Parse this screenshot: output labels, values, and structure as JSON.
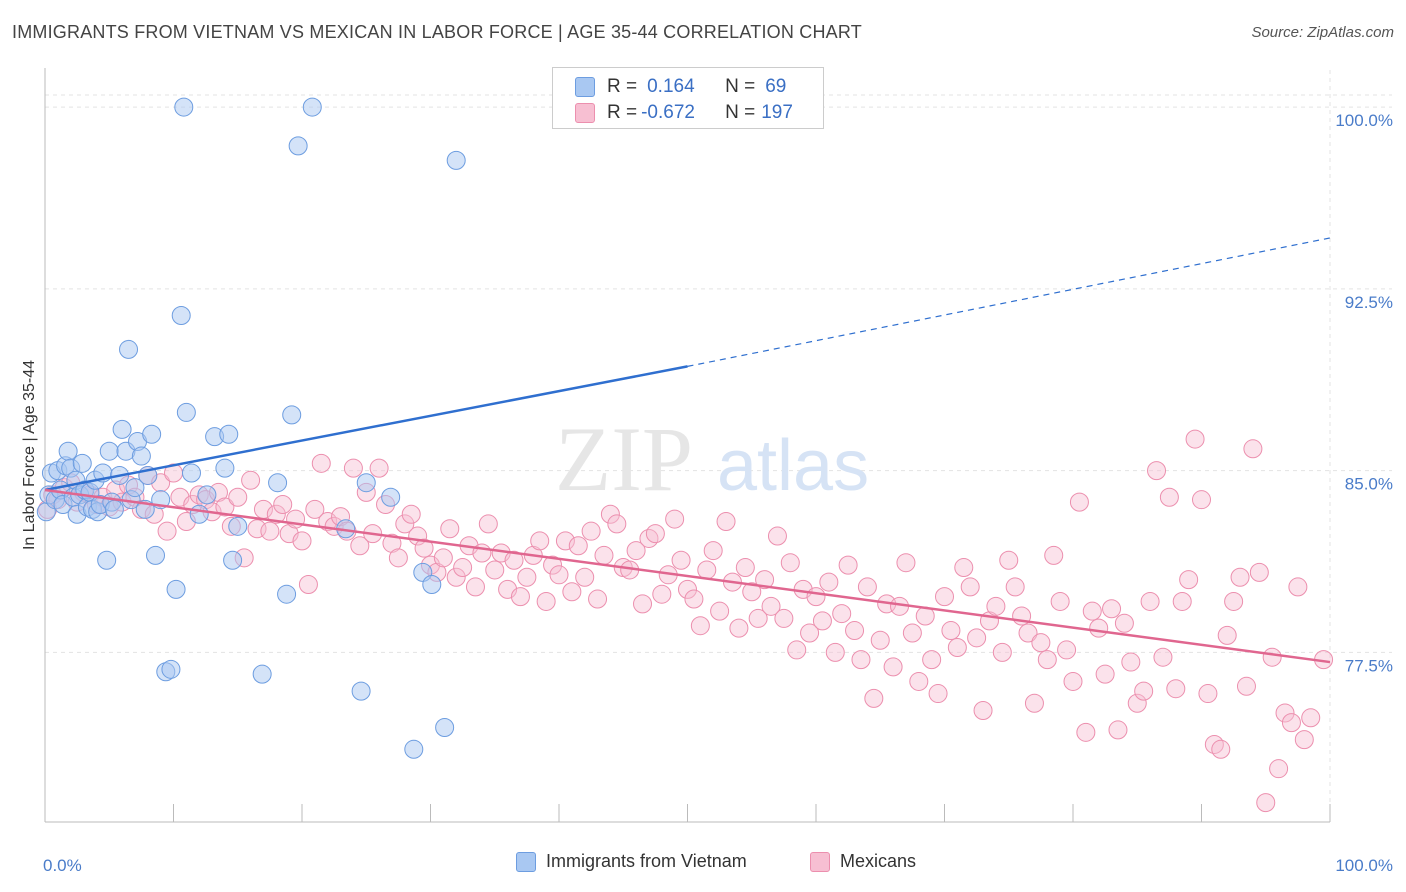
{
  "title": "IMMIGRANTS FROM VIETNAM VS MEXICAN IN LABOR FORCE | AGE 35-44 CORRELATION CHART",
  "source": "Source: ZipAtlas.com",
  "watermark": {
    "zip": "ZIP",
    "atlas": "atlas"
  },
  "legend_stats": [
    {
      "r_label": "R =",
      "r_value": "0.164",
      "n_label": "N =",
      "n_value": "69"
    },
    {
      "r_label": "R =",
      "r_value": "-0.672",
      "n_label": "N =",
      "n_value": "197"
    }
  ],
  "chart_data": {
    "type": "scatter",
    "title": "IMMIGRANTS FROM VIETNAM VS MEXICAN IN LABOR FORCE | AGE 35-44 CORRELATION CHART",
    "xlabel": "",
    "ylabel": "In Labor Force | Age 35-44",
    "xlim": [
      0,
      100
    ],
    "ylim": [
      70.5,
      101.2
    ],
    "x_tick_labels": [
      "0.0%",
      "100.0%"
    ],
    "y_ticks": [
      77.5,
      85.0,
      92.5,
      100.0
    ],
    "y_tick_labels": [
      "77.5%",
      "85.0%",
      "92.5%",
      "100.0%"
    ],
    "grid": true,
    "legend_position": "bottom",
    "colors": {
      "vietnam_fill": "#a9c8f2",
      "vietnam_stroke": "#6d9de0",
      "vietnam_line": "#2f6fcf",
      "mexican_fill": "#f7bfd2",
      "mexican_stroke": "#ec8fae",
      "mexican_line": "#e0668f",
      "tick_text": "#4a7cc9",
      "grid": "#e3e3e3"
    },
    "series": [
      {
        "name": "Immigrants from Vietnam",
        "r": 0.164,
        "n": 69,
        "trend": {
          "x0": 0,
          "y0": 84.2,
          "x1": 50,
          "y1": 89.3,
          "dash_x1": 100,
          "dash_y1": 94.6
        },
        "points": [
          [
            0.1,
            83.3
          ],
          [
            0.3,
            84.0
          ],
          [
            0.5,
            84.9
          ],
          [
            0.8,
            83.8
          ],
          [
            1.0,
            85.0
          ],
          [
            1.2,
            84.2
          ],
          [
            1.4,
            83.6
          ],
          [
            1.6,
            85.2
          ],
          [
            1.8,
            85.8
          ],
          [
            2.0,
            85.1
          ],
          [
            2.2,
            83.9
          ],
          [
            2.4,
            84.6
          ],
          [
            2.5,
            83.2
          ],
          [
            2.7,
            84.0
          ],
          [
            2.9,
            85.3
          ],
          [
            3.1,
            84.2
          ],
          [
            3.3,
            83.5
          ],
          [
            3.5,
            84.1
          ],
          [
            3.7,
            83.4
          ],
          [
            3.9,
            84.6
          ],
          [
            4.1,
            83.3
          ],
          [
            4.3,
            83.6
          ],
          [
            4.5,
            84.9
          ],
          [
            4.8,
            81.3
          ],
          [
            5.0,
            85.8
          ],
          [
            5.2,
            83.7
          ],
          [
            5.4,
            83.4
          ],
          [
            5.8,
            84.8
          ],
          [
            6.0,
            86.7
          ],
          [
            6.3,
            85.8
          ],
          [
            6.5,
            90.0
          ],
          [
            6.7,
            83.8
          ],
          [
            7.0,
            84.3
          ],
          [
            7.2,
            86.2
          ],
          [
            7.5,
            85.6
          ],
          [
            7.8,
            83.4
          ],
          [
            8.0,
            84.8
          ],
          [
            8.3,
            86.5
          ],
          [
            8.6,
            81.5
          ],
          [
            9.0,
            83.8
          ],
          [
            9.4,
            76.7
          ],
          [
            9.8,
            76.8
          ],
          [
            10.2,
            80.1
          ],
          [
            10.6,
            91.4
          ],
          [
            11.0,
            87.4
          ],
          [
            11.4,
            84.9
          ],
          [
            12.0,
            83.2
          ],
          [
            12.6,
            84.0
          ],
          [
            13.2,
            86.4
          ],
          [
            14.0,
            85.1
          ],
          [
            14.3,
            86.5
          ],
          [
            14.6,
            81.3
          ],
          [
            15.0,
            82.7
          ],
          [
            16.9,
            76.6
          ],
          [
            18.1,
            84.5
          ],
          [
            18.8,
            79.9
          ],
          [
            19.2,
            87.3
          ],
          [
            19.7,
            98.4
          ],
          [
            20.8,
            100.0
          ],
          [
            23.4,
            82.6
          ],
          [
            24.6,
            75.9
          ],
          [
            25.0,
            84.5
          ],
          [
            26.9,
            83.9
          ],
          [
            28.7,
            73.5
          ],
          [
            29.4,
            80.8
          ],
          [
            30.1,
            80.3
          ],
          [
            31.1,
            74.4
          ],
          [
            32.0,
            97.8
          ],
          [
            10.8,
            100.0
          ]
        ]
      },
      {
        "name": "Mexicans",
        "r": -0.672,
        "n": 197,
        "trend": {
          "x0": 0,
          "y0": 84.2,
          "x1": 100,
          "y1": 77.1
        },
        "points": [
          [
            0.2,
            83.4
          ],
          [
            0.6,
            84.0
          ],
          [
            1.0,
            83.8
          ],
          [
            1.5,
            84.3
          ],
          [
            2.0,
            84.5
          ],
          [
            2.5,
            83.7
          ],
          [
            3.0,
            84.1
          ],
          [
            3.5,
            84.0
          ],
          [
            4.0,
            83.6
          ],
          [
            4.5,
            83.9
          ],
          [
            5.0,
            83.5
          ],
          [
            5.5,
            84.2
          ],
          [
            6.0,
            83.7
          ],
          [
            6.5,
            84.4
          ],
          [
            7.0,
            83.9
          ],
          [
            7.5,
            83.4
          ],
          [
            8.0,
            84.8
          ],
          [
            8.5,
            83.2
          ],
          [
            9.0,
            84.5
          ],
          [
            9.5,
            82.5
          ],
          [
            10.0,
            84.9
          ],
          [
            10.5,
            83.9
          ],
          [
            11.0,
            82.9
          ],
          [
            11.5,
            83.6
          ],
          [
            12.0,
            84.0
          ],
          [
            12.5,
            83.8
          ],
          [
            13.0,
            83.3
          ],
          [
            13.5,
            84.1
          ],
          [
            14.0,
            83.5
          ],
          [
            14.5,
            82.7
          ],
          [
            15.0,
            83.9
          ],
          [
            15.5,
            81.4
          ],
          [
            16.0,
            84.6
          ],
          [
            16.5,
            82.6
          ],
          [
            17.0,
            83.4
          ],
          [
            17.5,
            82.5
          ],
          [
            18.0,
            83.2
          ],
          [
            18.5,
            83.6
          ],
          [
            19.0,
            82.4
          ],
          [
            19.5,
            83.0
          ],
          [
            20.0,
            82.1
          ],
          [
            20.5,
            80.3
          ],
          [
            21.0,
            83.4
          ],
          [
            21.5,
            85.3
          ],
          [
            22.0,
            82.9
          ],
          [
            22.5,
            82.7
          ],
          [
            23.0,
            83.1
          ],
          [
            23.5,
            82.5
          ],
          [
            24.0,
            85.1
          ],
          [
            24.5,
            81.9
          ],
          [
            25.0,
            84.1
          ],
          [
            25.5,
            82.4
          ],
          [
            26.0,
            85.1
          ],
          [
            26.5,
            83.6
          ],
          [
            27.0,
            82.0
          ],
          [
            27.5,
            81.4
          ],
          [
            28.0,
            82.8
          ],
          [
            28.5,
            83.2
          ],
          [
            29.0,
            82.3
          ],
          [
            29.5,
            81.8
          ],
          [
            30.0,
            81.1
          ],
          [
            30.5,
            80.8
          ],
          [
            31.0,
            81.4
          ],
          [
            31.5,
            82.6
          ],
          [
            32.0,
            80.6
          ],
          [
            32.5,
            81.0
          ],
          [
            33.0,
            81.9
          ],
          [
            33.5,
            80.2
          ],
          [
            34.0,
            81.6
          ],
          [
            34.5,
            82.8
          ],
          [
            35.0,
            80.9
          ],
          [
            35.5,
            81.6
          ],
          [
            36.0,
            80.1
          ],
          [
            36.5,
            81.3
          ],
          [
            37.0,
            79.8
          ],
          [
            37.5,
            80.6
          ],
          [
            38.0,
            81.5
          ],
          [
            38.5,
            82.1
          ],
          [
            39.0,
            79.6
          ],
          [
            39.5,
            81.1
          ],
          [
            40.0,
            80.7
          ],
          [
            40.5,
            82.1
          ],
          [
            41.0,
            80.0
          ],
          [
            41.5,
            81.9
          ],
          [
            42.0,
            80.6
          ],
          [
            42.5,
            82.5
          ],
          [
            43.0,
            79.7
          ],
          [
            43.5,
            81.5
          ],
          [
            44.0,
            83.2
          ],
          [
            44.5,
            82.8
          ],
          [
            45.0,
            81.0
          ],
          [
            45.5,
            80.9
          ],
          [
            46.0,
            81.7
          ],
          [
            46.5,
            79.5
          ],
          [
            47.0,
            82.2
          ],
          [
            47.5,
            82.4
          ],
          [
            48.0,
            79.9
          ],
          [
            48.5,
            80.7
          ],
          [
            49.0,
            83.0
          ],
          [
            49.5,
            81.3
          ],
          [
            50.0,
            80.1
          ],
          [
            50.5,
            79.7
          ],
          [
            51.0,
            78.6
          ],
          [
            51.5,
            80.9
          ],
          [
            52.0,
            81.7
          ],
          [
            52.5,
            79.2
          ],
          [
            53.0,
            82.9
          ],
          [
            53.5,
            80.4
          ],
          [
            54.0,
            78.5
          ],
          [
            54.5,
            81.0
          ],
          [
            55.0,
            80.0
          ],
          [
            55.5,
            78.9
          ],
          [
            56.0,
            80.5
          ],
          [
            56.5,
            79.4
          ],
          [
            57.0,
            82.3
          ],
          [
            57.5,
            78.9
          ],
          [
            58.0,
            81.2
          ],
          [
            58.5,
            77.6
          ],
          [
            59.0,
            80.1
          ],
          [
            59.5,
            78.3
          ],
          [
            60.0,
            79.8
          ],
          [
            60.5,
            78.8
          ],
          [
            61.0,
            80.4
          ],
          [
            61.5,
            77.5
          ],
          [
            62.0,
            79.1
          ],
          [
            62.5,
            81.1
          ],
          [
            63.0,
            78.4
          ],
          [
            63.5,
            77.2
          ],
          [
            64.0,
            80.2
          ],
          [
            64.5,
            75.6
          ],
          [
            65.0,
            78.0
          ],
          [
            65.5,
            79.5
          ],
          [
            66.0,
            76.9
          ],
          [
            66.5,
            79.4
          ],
          [
            67.0,
            81.2
          ],
          [
            67.5,
            78.3
          ],
          [
            68.0,
            76.3
          ],
          [
            68.5,
            79.0
          ],
          [
            69.0,
            77.2
          ],
          [
            69.5,
            75.8
          ],
          [
            70.0,
            79.8
          ],
          [
            70.5,
            78.4
          ],
          [
            71.0,
            77.7
          ],
          [
            71.5,
            81.0
          ],
          [
            72.0,
            80.2
          ],
          [
            72.5,
            78.1
          ],
          [
            73.0,
            75.1
          ],
          [
            73.5,
            78.8
          ],
          [
            74.0,
            79.4
          ],
          [
            74.5,
            77.5
          ],
          [
            75.0,
            81.3
          ],
          [
            75.5,
            80.2
          ],
          [
            76.0,
            79.0
          ],
          [
            76.5,
            78.3
          ],
          [
            77.0,
            75.4
          ],
          [
            77.5,
            77.9
          ],
          [
            78.0,
            77.2
          ],
          [
            78.5,
            81.5
          ],
          [
            79.0,
            79.6
          ],
          [
            79.5,
            77.6
          ],
          [
            80.0,
            76.3
          ],
          [
            80.5,
            83.7
          ],
          [
            81.0,
            74.2
          ],
          [
            81.5,
            79.2
          ],
          [
            82.0,
            78.5
          ],
          [
            82.5,
            76.6
          ],
          [
            83.0,
            79.3
          ],
          [
            83.5,
            74.3
          ],
          [
            84.0,
            78.7
          ],
          [
            84.5,
            77.1
          ],
          [
            85.0,
            75.4
          ],
          [
            85.5,
            75.9
          ],
          [
            86.0,
            79.6
          ],
          [
            86.5,
            85.0
          ],
          [
            87.0,
            77.3
          ],
          [
            87.5,
            83.9
          ],
          [
            88.0,
            76.0
          ],
          [
            88.5,
            79.6
          ],
          [
            89.0,
            80.5
          ],
          [
            89.5,
            86.3
          ],
          [
            90.0,
            83.8
          ],
          [
            90.5,
            75.8
          ],
          [
            91.0,
            73.7
          ],
          [
            91.5,
            73.5
          ],
          [
            92.0,
            78.2
          ],
          [
            92.5,
            79.6
          ],
          [
            93.0,
            80.6
          ],
          [
            93.5,
            76.1
          ],
          [
            94.0,
            85.9
          ],
          [
            94.5,
            80.8
          ],
          [
            95.0,
            71.3
          ],
          [
            95.5,
            77.3
          ],
          [
            96.0,
            72.7
          ],
          [
            96.5,
            75.0
          ],
          [
            97.0,
            74.6
          ],
          [
            97.5,
            80.2
          ],
          [
            98.0,
            73.9
          ],
          [
            98.5,
            74.8
          ],
          [
            99.5,
            77.2
          ]
        ]
      }
    ]
  },
  "bottom_legend": [
    "Immigrants from Vietnam",
    "Mexicans"
  ]
}
